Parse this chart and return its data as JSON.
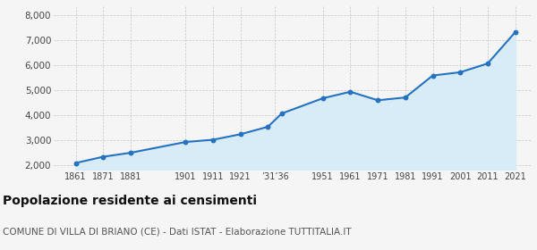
{
  "years": [
    1861,
    1871,
    1881,
    1901,
    1911,
    1921,
    1931,
    1936,
    1951,
    1961,
    1971,
    1981,
    1991,
    2001,
    2011,
    2021
  ],
  "population": [
    2080,
    2330,
    2490,
    2920,
    3010,
    3230,
    3530,
    4060,
    4670,
    4930,
    4590,
    4700,
    5580,
    5710,
    6060,
    7310
  ],
  "ylim": [
    1800,
    8400
  ],
  "yticks": [
    2000,
    3000,
    4000,
    5000,
    6000,
    7000,
    8000
  ],
  "line_color": "#2472c0",
  "fill_color": "#d8ecf8",
  "marker_color": "#2472c0",
  "bg_color": "#f5f5f5",
  "grid_color": "#c8c8c8",
  "title": "Popolazione residente ai censimenti",
  "subtitle": "COMUNE DI VILLA DI BRIANO (CE) - Dati ISTAT - Elaborazione TUTTITALIA.IT",
  "title_fontsize": 10,
  "subtitle_fontsize": 7.5,
  "xlim_left": 1853,
  "xlim_right": 2027
}
